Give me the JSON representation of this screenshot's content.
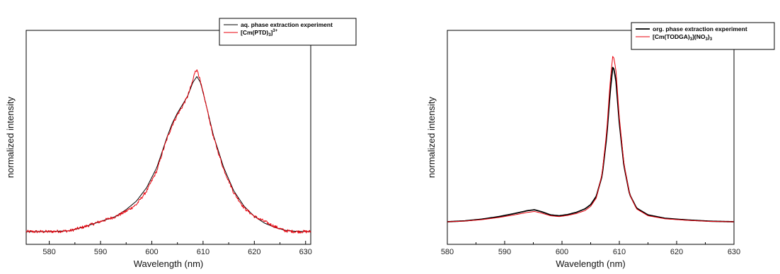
{
  "chart_data": [
    {
      "type": "line",
      "xlabel": "Wavelength (nm)",
      "ylabel": "normalized intensity",
      "xlim": [
        575.5,
        631
      ],
      "ylim": [
        0,
        1.0
      ],
      "x_ticks": [
        580,
        590,
        600,
        610,
        620,
        630
      ],
      "y_ticks_shown": false,
      "grid": false,
      "legend_position": "top-right",
      "series": [
        {
          "name": "aq. phase extraction experiment",
          "color": "#000000",
          "line": "thin",
          "x": [
            575.5,
            580,
            584,
            587,
            590,
            593,
            595,
            597,
            599,
            601,
            602,
            603,
            604,
            605,
            606,
            607,
            608,
            608.8,
            609.5,
            610.5,
            612,
            614,
            616,
            618,
            620,
            622,
            624,
            626,
            628,
            631
          ],
          "y": [
            0.0,
            0.0,
            0.005,
            0.03,
            0.06,
            0.09,
            0.13,
            0.18,
            0.26,
            0.38,
            0.47,
            0.56,
            0.64,
            0.7,
            0.75,
            0.8,
            0.88,
            0.915,
            0.88,
            0.76,
            0.57,
            0.38,
            0.24,
            0.15,
            0.09,
            0.05,
            0.025,
            0.008,
            0.002,
            0.0
          ]
        },
        {
          "name_parts": [
            "[Cm(PTD)",
            "3",
            "]",
            "3+"
          ],
          "color": "#e8000b",
          "line": "noisy",
          "x": [
            575.5,
            580,
            584,
            587,
            590,
            593,
            595,
            597,
            599,
            601,
            602,
            603,
            604,
            605,
            606,
            607,
            608,
            608.5,
            609,
            609.5,
            610.5,
            612,
            614,
            616,
            618,
            620,
            622,
            624,
            626,
            628,
            631
          ],
          "y": [
            0.0,
            0.0,
            0.005,
            0.03,
            0.06,
            0.09,
            0.12,
            0.16,
            0.24,
            0.36,
            0.46,
            0.55,
            0.63,
            0.69,
            0.74,
            0.8,
            0.89,
            0.955,
            0.945,
            0.88,
            0.76,
            0.56,
            0.37,
            0.23,
            0.14,
            0.09,
            0.06,
            0.03,
            0.005,
            0.0,
            0.0
          ]
        }
      ]
    },
    {
      "type": "line",
      "xlabel": "Wavelength (nm)",
      "ylabel": "normalized intensity",
      "xlim": [
        580,
        630
      ],
      "ylim": [
        0,
        1.0
      ],
      "x_ticks": [
        580,
        590,
        600,
        610,
        620,
        630
      ],
      "y_ticks_shown": false,
      "grid": false,
      "legend_position": "top-right",
      "series": [
        {
          "name": "org. phase extraction experiment",
          "color": "#000000",
          "line": "thick",
          "x": [
            580,
            583,
            586,
            589,
            592,
            594,
            595.2,
            596.5,
            598,
            599.5,
            601,
            602.5,
            604,
            605,
            606,
            607,
            607.8,
            608.4,
            608.9,
            609.4,
            610,
            610.8,
            611.8,
            613,
            615,
            618,
            622,
            626,
            630
          ],
          "y": [
            0.0,
            0.005,
            0.015,
            0.03,
            0.05,
            0.065,
            0.07,
            0.058,
            0.04,
            0.035,
            0.042,
            0.055,
            0.075,
            0.1,
            0.15,
            0.27,
            0.5,
            0.76,
            0.92,
            0.83,
            0.58,
            0.33,
            0.16,
            0.08,
            0.04,
            0.02,
            0.01,
            0.003,
            0.0
          ]
        },
        {
          "name_parts": [
            "[Cm(TODGA)",
            "3",
            "](NO",
            "3",
            ")",
            "3"
          ],
          "color": "#e8000b",
          "line": "thin",
          "x": [
            580,
            583,
            586,
            589,
            592,
            594,
            595.2,
            596.5,
            598,
            599.5,
            601,
            602.5,
            604,
            605,
            606,
            607,
            607.8,
            608.4,
            608.9,
            609.4,
            610,
            610.8,
            611.8,
            613,
            615,
            618,
            622,
            626,
            630
          ],
          "y": [
            0.0,
            0.004,
            0.012,
            0.025,
            0.042,
            0.055,
            0.06,
            0.05,
            0.035,
            0.03,
            0.037,
            0.048,
            0.065,
            0.09,
            0.14,
            0.28,
            0.53,
            0.82,
            0.985,
            0.89,
            0.61,
            0.34,
            0.16,
            0.075,
            0.035,
            0.017,
            0.008,
            0.002,
            0.0
          ]
        }
      ]
    }
  ]
}
